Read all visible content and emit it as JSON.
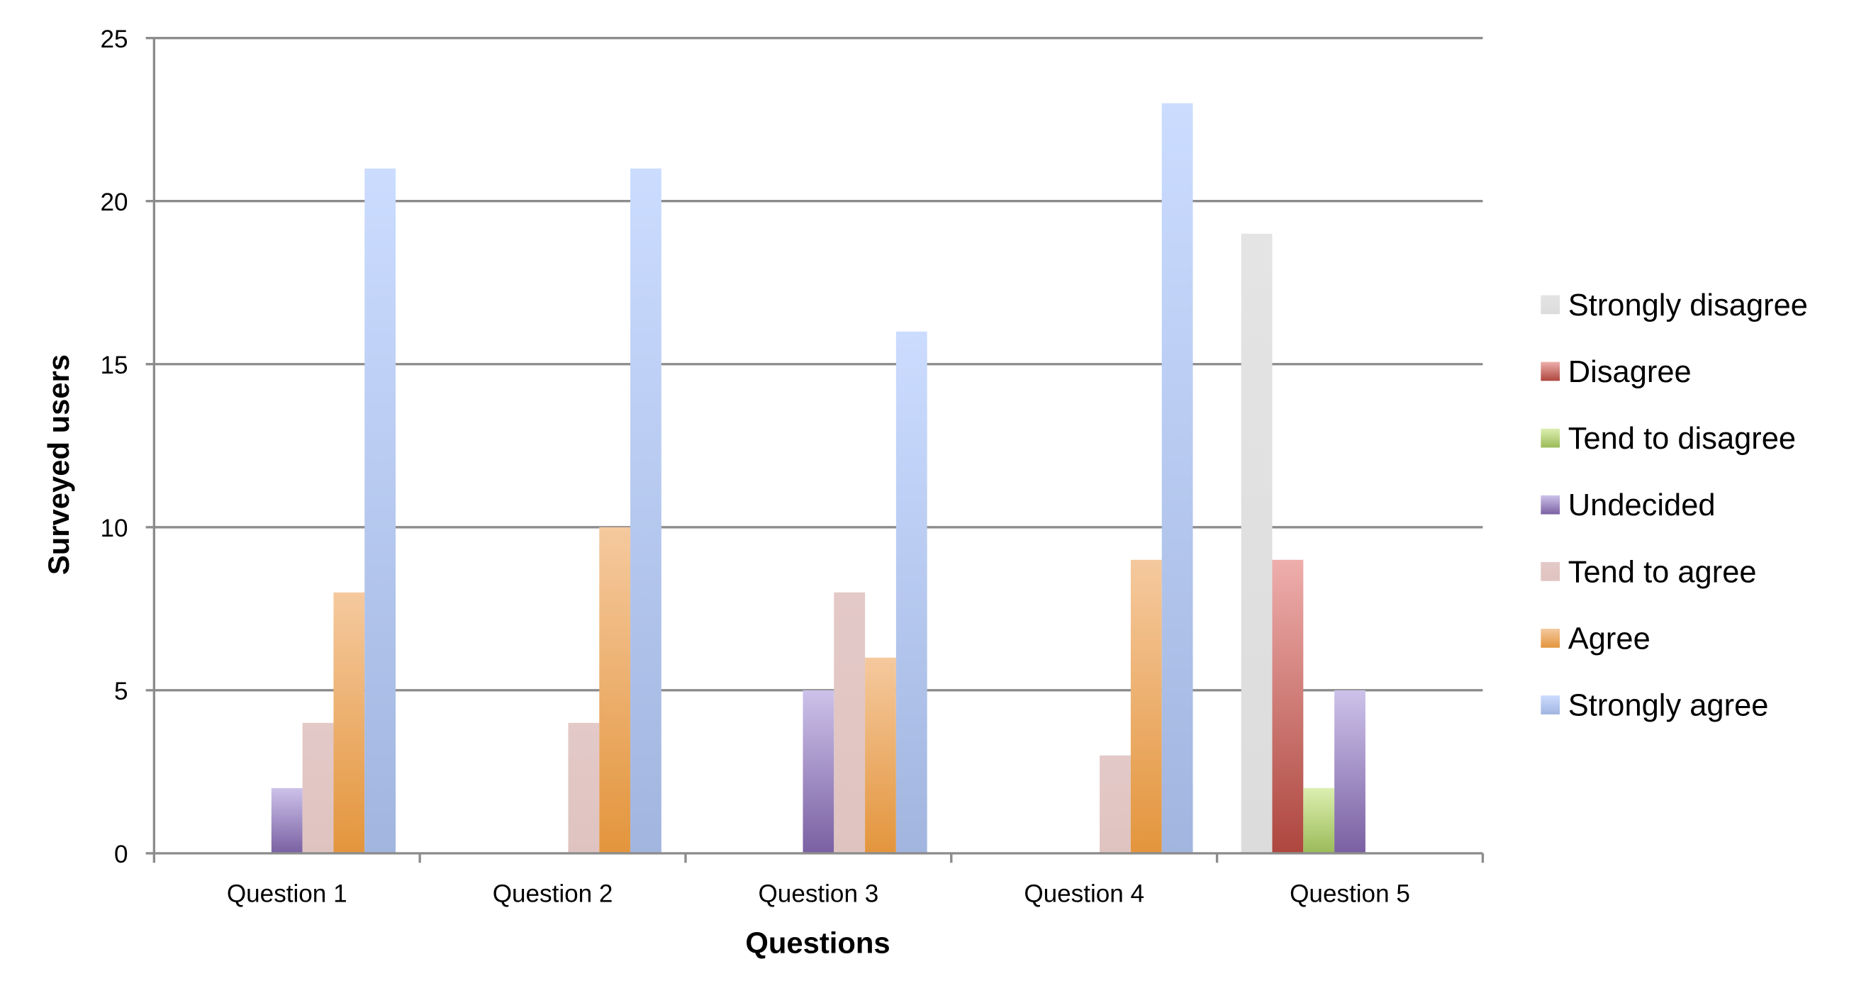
{
  "chart_data": {
    "type": "bar",
    "title": "",
    "xlabel": "Questions",
    "ylabel": "Surveyed users",
    "ylim": [
      0,
      25
    ],
    "yticks": [
      0,
      5,
      10,
      15,
      20,
      25
    ],
    "grid": true,
    "legend_position": "right",
    "categories": [
      "Question 1",
      "Question 2",
      "Question 3",
      "Question 4",
      "Question 5"
    ],
    "series": [
      {
        "name": "Strongly disagree",
        "values": [
          0,
          0,
          0,
          0,
          19
        ],
        "color_top": "#e4e4e4",
        "color_bottom": "#dcdcdc"
      },
      {
        "name": "Disagree",
        "values": [
          0,
          0,
          0,
          0,
          9
        ],
        "color_top": "#eeaeac",
        "color_bottom": "#ad463e"
      },
      {
        "name": "Tend to disagree",
        "values": [
          0,
          0,
          0,
          0,
          2
        ],
        "color_top": "#dcefb0",
        "color_bottom": "#9bbb59"
      },
      {
        "name": "Undecided",
        "values": [
          2,
          0,
          5,
          0,
          5
        ],
        "color_top": "#cdc2ea",
        "color_bottom": "#7a60a2"
      },
      {
        "name": "Tend to agree",
        "values": [
          4,
          4,
          8,
          3,
          0
        ],
        "color_top": "#e3c9c7",
        "color_bottom": "#dfc3c1"
      },
      {
        "name": "Agree",
        "values": [
          8,
          10,
          6,
          9,
          0
        ],
        "color_top": "#f5c99e",
        "color_bottom": "#e3953c"
      },
      {
        "name": "Strongly agree",
        "values": [
          21,
          21,
          16,
          23,
          0
        ],
        "color_top": "#cbdcff",
        "color_bottom": "#a1b5df"
      }
    ]
  }
}
